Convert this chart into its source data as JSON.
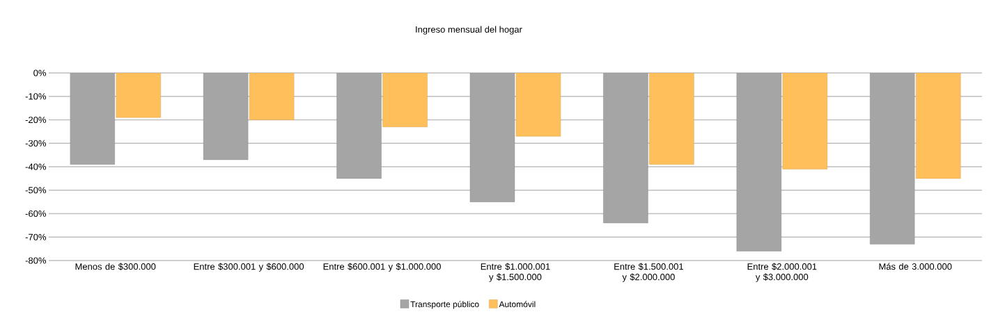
{
  "chart_data": {
    "type": "bar",
    "title": "Ingreso mensual del hogar",
    "categories": [
      "Menos de $300.000",
      "Entre $300.001 y $600.000",
      "Entre $600.001 y $1.000.000",
      "Entre $1.000.001 y $1.500.000",
      "Entre $1.500.001 y $2.000.000",
      "Entre $2.000.001 y $3.000.000",
      "Más de 3.000.000"
    ],
    "series": [
      {
        "name": "Transporte público",
        "color": "#a5a5a5",
        "values": [
          -39,
          -37,
          -45,
          -55,
          -64,
          -76,
          -73
        ]
      },
      {
        "name": "Automóvil",
        "color": "#ffc05c",
        "values": [
          -19,
          -20,
          -23,
          -27,
          -39,
          -41,
          -45
        ]
      }
    ],
    "ylim": [
      -80,
      0
    ],
    "yticks": [
      {
        "value": -80,
        "label": "-80%"
      },
      {
        "value": -70,
        "label": "-70%"
      },
      {
        "value": -60,
        "label": "-60%"
      },
      {
        "value": -50,
        "label": "-50%"
      },
      {
        "value": -40,
        "label": "-40%"
      },
      {
        "value": -30,
        "label": "-30%"
      },
      {
        "value": -20,
        "label": "-20%"
      },
      {
        "value": -10,
        "label": "-10%"
      },
      {
        "value": 0,
        "label": "0%"
      }
    ],
    "grid": "y",
    "legend": "bottom"
  }
}
